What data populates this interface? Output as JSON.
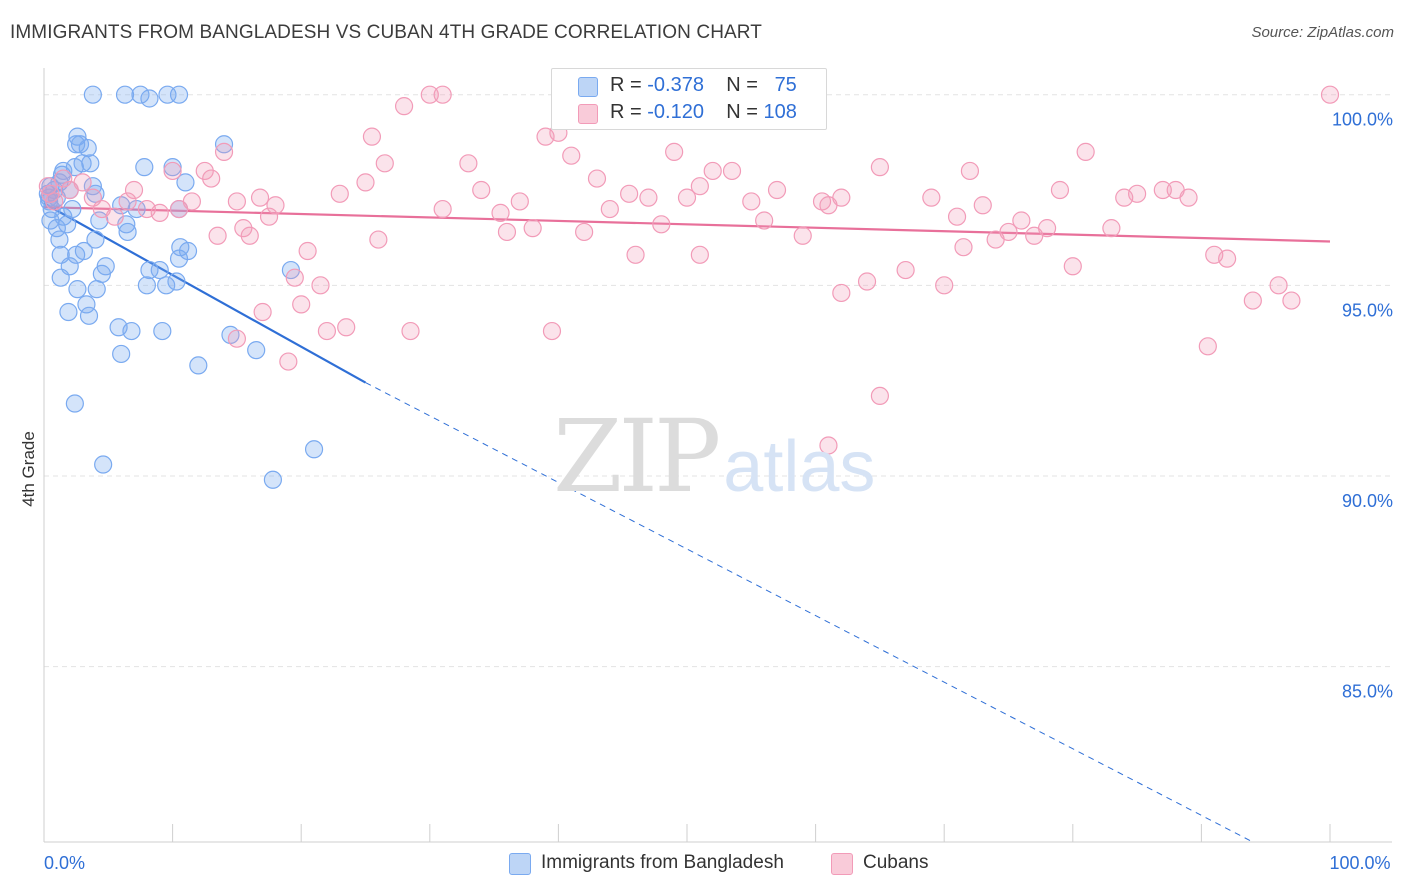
{
  "header": {
    "title": "IMMIGRANTS FROM BANGLADESH VS CUBAN 4TH GRADE CORRELATION CHART",
    "source": "Source: ZipAtlas.com"
  },
  "watermark": {
    "zip": "ZIP",
    "atlas": "atlas"
  },
  "legend_top": {
    "rows": [
      {
        "r_label": "R =",
        "r_value": "-0.378",
        "n_label": "N =",
        "n_value": "75",
        "color": "#a9c8f2"
      },
      {
        "r_label": "R =",
        "r_value": "-0.120",
        "n_label": "N =",
        "n_value": "108",
        "color": "#f6b8cc"
      }
    ]
  },
  "legend_bottom": {
    "items": [
      {
        "label": "Immigrants from Bangladesh",
        "color": "#a9c8f2"
      },
      {
        "label": "Cubans",
        "color": "#f6b8cc"
      }
    ]
  },
  "chart_data": {
    "type": "scatter",
    "title": "IMMIGRANTS FROM BANGLADESH VS CUBAN 4TH GRADE CORRELATION CHART",
    "xlabel": "",
    "ylabel": "4th Grade",
    "xlim": [
      0,
      100
    ],
    "ylim": [
      80.4,
      100.7
    ],
    "x_tick_labels": [
      {
        "value": 0,
        "label": "0.0%"
      },
      {
        "value": 100,
        "label": "100.0%"
      }
    ],
    "y_tick_labels": [
      {
        "value": 100,
        "label": "100.0%"
      },
      {
        "value": 95,
        "label": "95.0%"
      },
      {
        "value": 90,
        "label": "90.0%"
      },
      {
        "value": 85,
        "label": "85.0%"
      }
    ],
    "x_minor_ticks": [
      0,
      10,
      20,
      30,
      40,
      50,
      60,
      70,
      80,
      90,
      100
    ],
    "grid": true,
    "series": [
      {
        "name": "Immigrants from Bangladesh",
        "color": "#7aaaf0",
        "line_color": "#2f6fd6",
        "trend": {
          "x0": 0,
          "y0": 97.15,
          "x1": 25,
          "y1": 92.45,
          "dash_to_x": 94,
          "dash_to_y": 80.4
        },
        "points": [
          [
            0.3,
            97.4
          ],
          [
            0.4,
            97.2
          ],
          [
            0.5,
            97.6
          ],
          [
            0.6,
            97.0
          ],
          [
            0.5,
            96.7
          ],
          [
            0.8,
            97.5
          ],
          [
            1.0,
            97.3
          ],
          [
            1.2,
            97.7
          ],
          [
            1.4,
            97.9
          ],
          [
            1.5,
            98.0
          ],
          [
            1.0,
            96.5
          ],
          [
            1.2,
            96.2
          ],
          [
            1.5,
            96.8
          ],
          [
            1.8,
            96.6
          ],
          [
            2.0,
            97.5
          ],
          [
            2.2,
            97.0
          ],
          [
            2.4,
            98.1
          ],
          [
            2.5,
            98.7
          ],
          [
            2.6,
            98.9
          ],
          [
            2.8,
            98.7
          ],
          [
            3.0,
            98.2
          ],
          [
            3.4,
            98.6
          ],
          [
            3.6,
            98.2
          ],
          [
            3.8,
            97.6
          ],
          [
            4.0,
            97.4
          ],
          [
            4.3,
            96.7
          ],
          [
            1.3,
            95.8
          ],
          [
            1.3,
            95.2
          ],
          [
            2.0,
            95.5
          ],
          [
            2.5,
            95.8
          ],
          [
            2.6,
            94.9
          ],
          [
            3.3,
            94.5
          ],
          [
            3.5,
            94.2
          ],
          [
            4.1,
            94.9
          ],
          [
            4.5,
            95.3
          ],
          [
            4.8,
            95.5
          ],
          [
            1.9,
            94.3
          ],
          [
            3.1,
            95.9
          ],
          [
            4.0,
            96.2
          ],
          [
            6.5,
            96.4
          ],
          [
            6.4,
            96.6
          ],
          [
            6.0,
            97.1
          ],
          [
            7.2,
            97.0
          ],
          [
            7.8,
            98.1
          ],
          [
            10.0,
            98.1
          ],
          [
            10.5,
            97.0
          ],
          [
            11.0,
            97.7
          ],
          [
            8.0,
            95.0
          ],
          [
            8.2,
            95.4
          ],
          [
            9.0,
            95.4
          ],
          [
            10.3,
            95.1
          ],
          [
            10.5,
            95.7
          ],
          [
            9.5,
            95.0
          ],
          [
            10.6,
            96.0
          ],
          [
            11.2,
            95.9
          ],
          [
            5.8,
            93.9
          ],
          [
            6.0,
            93.2
          ],
          [
            6.8,
            93.8
          ],
          [
            9.2,
            93.8
          ],
          [
            12.0,
            92.9
          ],
          [
            14.5,
            93.7
          ],
          [
            16.5,
            93.3
          ],
          [
            19.2,
            95.4
          ],
          [
            14.0,
            98.7
          ],
          [
            3.8,
            100.0
          ],
          [
            6.3,
            100.0
          ],
          [
            7.5,
            100.0
          ],
          [
            8.2,
            99.9
          ],
          [
            9.6,
            100.0
          ],
          [
            10.5,
            100.0
          ],
          [
            2.4,
            91.9
          ],
          [
            4.6,
            90.3
          ],
          [
            17.8,
            89.9
          ],
          [
            21.0,
            90.7
          ],
          [
            0.4,
            97.3
          ]
        ]
      },
      {
        "name": "Cubans",
        "color": "#f29bb8",
        "line_color": "#e8709a",
        "trend": {
          "x0": 0,
          "y0": 97.05,
          "x1": 100,
          "y1": 96.15
        },
        "points": [
          [
            0.3,
            97.6
          ],
          [
            0.5,
            97.4
          ],
          [
            0.8,
            97.2
          ],
          [
            1.5,
            97.8
          ],
          [
            2.0,
            97.5
          ],
          [
            3.0,
            97.7
          ],
          [
            3.8,
            97.3
          ],
          [
            4.5,
            97.0
          ],
          [
            5.5,
            96.8
          ],
          [
            6.5,
            97.2
          ],
          [
            7.0,
            97.5
          ],
          [
            8.0,
            97.0
          ],
          [
            9.0,
            96.9
          ],
          [
            10.0,
            98.0
          ],
          [
            10.5,
            97.0
          ],
          [
            11.5,
            97.2
          ],
          [
            13.0,
            97.8
          ],
          [
            14.0,
            98.5
          ],
          [
            12.5,
            98.0
          ],
          [
            15.0,
            97.2
          ],
          [
            16.0,
            96.3
          ],
          [
            17.5,
            96.8
          ],
          [
            13.5,
            96.3
          ],
          [
            15.5,
            96.5
          ],
          [
            16.8,
            97.3
          ],
          [
            18.0,
            97.1
          ],
          [
            19.5,
            95.2
          ],
          [
            21.5,
            95.0
          ],
          [
            23.0,
            97.4
          ],
          [
            25.0,
            97.7
          ],
          [
            25.5,
            98.9
          ],
          [
            26.5,
            98.2
          ],
          [
            28.0,
            99.7
          ],
          [
            30.0,
            100.0
          ],
          [
            31.0,
            100.0
          ],
          [
            33.0,
            98.2
          ],
          [
            34.0,
            97.5
          ],
          [
            35.5,
            96.9
          ],
          [
            37.0,
            97.2
          ],
          [
            38.0,
            96.5
          ],
          [
            39.0,
            98.9
          ],
          [
            40.0,
            99.0
          ],
          [
            41.0,
            98.4
          ],
          [
            42.0,
            96.4
          ],
          [
            43.0,
            97.8
          ],
          [
            44.0,
            97.0
          ],
          [
            45.5,
            97.4
          ],
          [
            46.0,
            95.8
          ],
          [
            47.0,
            97.3
          ],
          [
            48.0,
            96.6
          ],
          [
            49.0,
            98.5
          ],
          [
            50.0,
            97.3
          ],
          [
            51.0,
            97.6
          ],
          [
            52.0,
            98.0
          ],
          [
            53.5,
            98.0
          ],
          [
            55.0,
            97.2
          ],
          [
            57.0,
            97.5
          ],
          [
            59.0,
            96.3
          ],
          [
            61.0,
            97.1
          ],
          [
            62.0,
            97.3
          ],
          [
            64.0,
            95.1
          ],
          [
            65.0,
            98.1
          ],
          [
            67.0,
            95.4
          ],
          [
            69.0,
            97.3
          ],
          [
            70.0,
            95.0
          ],
          [
            71.0,
            96.8
          ],
          [
            72.0,
            98.0
          ],
          [
            73.0,
            97.1
          ],
          [
            74.0,
            96.2
          ],
          [
            75.0,
            96.4
          ],
          [
            76.0,
            96.7
          ],
          [
            77.0,
            96.3
          ],
          [
            78.0,
            96.5
          ],
          [
            79.0,
            97.5
          ],
          [
            80.0,
            95.5
          ],
          [
            81.0,
            98.5
          ],
          [
            83.0,
            96.5
          ],
          [
            84.0,
            97.3
          ],
          [
            85.0,
            97.4
          ],
          [
            87.0,
            97.5
          ],
          [
            88.0,
            97.5
          ],
          [
            89.0,
            97.3
          ],
          [
            91.0,
            95.8
          ],
          [
            92.0,
            95.7
          ],
          [
            94.0,
            94.6
          ],
          [
            96.0,
            95.0
          ],
          [
            97.0,
            94.6
          ],
          [
            100.0,
            100.0
          ],
          [
            20.5,
            95.9
          ],
          [
            17.0,
            94.3
          ],
          [
            15.0,
            93.6
          ],
          [
            20.0,
            94.5
          ],
          [
            23.5,
            93.9
          ],
          [
            22.0,
            93.8
          ],
          [
            28.5,
            93.8
          ],
          [
            26.0,
            96.2
          ],
          [
            19.0,
            93.0
          ],
          [
            31.0,
            97.0
          ],
          [
            36.0,
            96.4
          ],
          [
            39.5,
            93.8
          ],
          [
            51.0,
            95.8
          ],
          [
            56.0,
            96.7
          ],
          [
            60.5,
            97.2
          ],
          [
            62.0,
            94.8
          ],
          [
            71.5,
            96.0
          ],
          [
            90.5,
            93.4
          ],
          [
            65.0,
            92.1
          ],
          [
            61.0,
            90.8
          ]
        ]
      }
    ]
  }
}
